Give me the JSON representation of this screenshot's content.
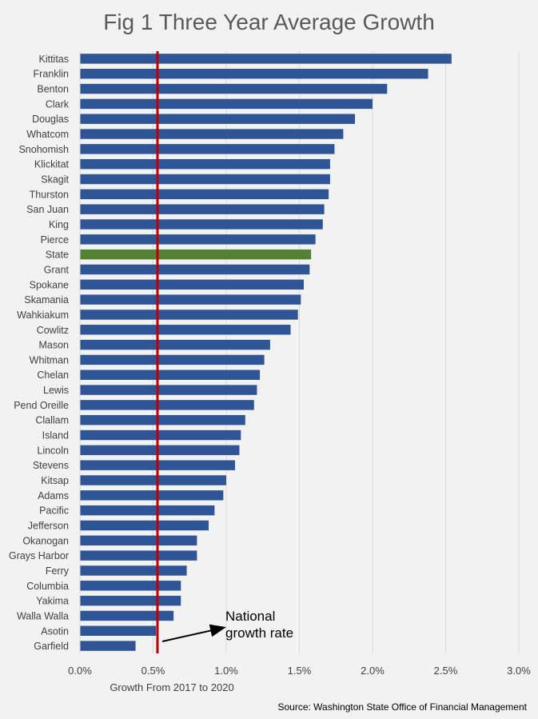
{
  "chart_data": {
    "type": "bar",
    "orientation": "horizontal",
    "title": "Fig 1 Three Year Average Growth",
    "xlabel": "Growth  From 2017 to 2020",
    "ylabel": "",
    "xlim": [
      0,
      3.0
    ],
    "x_ticks": [
      "0.0%",
      "0.5%",
      "1.0%",
      "1.5%",
      "2.0%",
      "2.5%",
      "3.0%"
    ],
    "grid": "vertical",
    "categories": [
      "Kittitas",
      "Franklin",
      "Benton",
      "Clark",
      "Douglas",
      "Whatcom",
      "Snohomish",
      "Klickitat",
      "Skagit",
      "Thurston",
      "San Juan",
      "King",
      "Pierce",
      "State",
      "Grant",
      "Spokane",
      "Skamania",
      "Wahkiakum",
      "Cowlitz",
      "Mason",
      "Whitman",
      "Chelan",
      "Lewis",
      "Pend Oreille",
      "Clallam",
      "Island",
      "Lincoln",
      "Stevens",
      "Kitsap",
      "Adams",
      "Pacific",
      "Jefferson",
      "Okanogan",
      "Grays Harbor",
      "Ferry",
      "Columbia",
      "Yakima",
      "Walla Walla",
      "Asotin",
      "Garfield"
    ],
    "values": [
      2.54,
      2.38,
      2.1,
      2.0,
      1.88,
      1.8,
      1.74,
      1.71,
      1.71,
      1.7,
      1.67,
      1.66,
      1.61,
      1.58,
      1.57,
      1.53,
      1.51,
      1.49,
      1.44,
      1.3,
      1.26,
      1.23,
      1.21,
      1.19,
      1.13,
      1.1,
      1.09,
      1.06,
      1.0,
      0.98,
      0.92,
      0.88,
      0.8,
      0.8,
      0.73,
      0.69,
      0.69,
      0.64,
      0.52,
      0.38
    ],
    "highlight": {
      "category": "State",
      "color": "#548235"
    },
    "bar_color": "#2f5597",
    "reference_line": {
      "value": 0.53,
      "color": "#c00000"
    },
    "annotation": {
      "text_line1": "National",
      "text_line2": "growth rate"
    },
    "source": "Source: Washington State Office of Financial Management"
  }
}
